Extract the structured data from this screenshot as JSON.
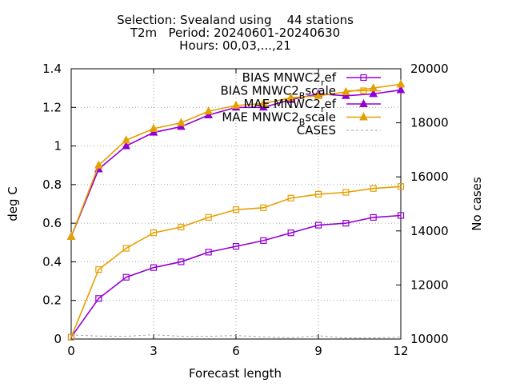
{
  "chart_data": {
    "type": "line",
    "title_lines": [
      "Selection: Svealand using    44 stations",
      "T2m   Period: 20240601-20240630",
      "Hours: 00,03,...,21"
    ],
    "xlabel": "Forecast length",
    "ylabel": "deg C",
    "y2label": "No cases",
    "xlim": [
      0,
      12
    ],
    "ylim": [
      0,
      1.4
    ],
    "y2lim": [
      10000,
      20000
    ],
    "x_ticks": [
      "0",
      "3",
      "6",
      "9",
      "12"
    ],
    "y_ticks": [
      "0",
      "0.2",
      "0.4",
      "0.6",
      "0.8",
      "1",
      "1.2",
      "1.4"
    ],
    "y2_ticks": [
      "10000",
      "12000",
      "14000",
      "16000",
      "18000",
      "20000"
    ],
    "grid": true,
    "legend_position": "top-right",
    "x": [
      0,
      1,
      2,
      3,
      4,
      5,
      6,
      7,
      8,
      9,
      10,
      11,
      12
    ],
    "series": [
      {
        "name": "BIAS MNWC2_ref",
        "legend_base": "BIAS MNWC2",
        "legend_sub": "r",
        "legend_tail": "ef",
        "color": "#9400d3",
        "marker": "square",
        "axis": "y",
        "values": [
          0.01,
          0.21,
          0.32,
          0.37,
          0.4,
          0.45,
          0.48,
          0.51,
          0.55,
          0.59,
          0.6,
          0.63,
          0.64
        ]
      },
      {
        "name": "BIAS MNWC2_Bscale",
        "legend_base": "BIAS MNWC2",
        "legend_sub": "B",
        "legend_tail": "scale",
        "color": "#e69f00",
        "marker": "square",
        "axis": "y",
        "values": [
          0.01,
          0.36,
          0.47,
          0.55,
          0.58,
          0.63,
          0.67,
          0.68,
          0.73,
          0.75,
          0.76,
          0.78,
          0.79
        ]
      },
      {
        "name": "MAE MNWC2_ref",
        "legend_base": "MAE MNWC2",
        "legend_sub": "r",
        "legend_tail": "ef",
        "color": "#9400d3",
        "marker": "triangle",
        "axis": "y",
        "values": [
          0.53,
          0.88,
          1.0,
          1.07,
          1.1,
          1.16,
          1.2,
          1.2,
          1.24,
          1.27,
          1.26,
          1.27,
          1.29
        ]
      },
      {
        "name": "MAE MNWC2_Bscale",
        "legend_base": "MAE MNWC2",
        "legend_sub": "B",
        "legend_tail": "scale",
        "color": "#e69f00",
        "marker": "triangle",
        "axis": "y",
        "values": [
          0.53,
          0.9,
          1.03,
          1.09,
          1.12,
          1.18,
          1.21,
          1.22,
          1.25,
          1.26,
          1.28,
          1.3,
          1.32
        ]
      },
      {
        "name": "CASES",
        "legend_base": "CASES",
        "legend_sub": "",
        "legend_tail": "",
        "color": "#a0a0a0",
        "marker": "none",
        "dashed": true,
        "axis": "y2",
        "values": [
          10150,
          10110,
          10100,
          10160,
          10100,
          10100,
          10130,
          10080,
          10050,
          10120,
          10040,
          10040,
          10070
        ]
      }
    ]
  }
}
